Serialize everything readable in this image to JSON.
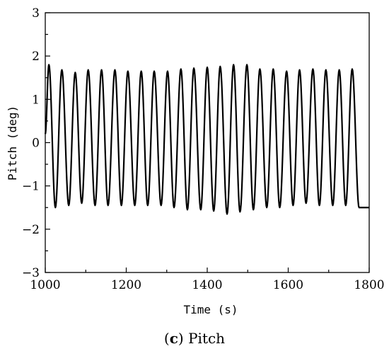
{
  "chart_data": {
    "type": "line",
    "title": "",
    "xlabel": "Time (s)",
    "ylabel": "Pitch (deg)",
    "xlim": [
      1000,
      1800
    ],
    "ylim": [
      -3,
      3
    ],
    "xticks": [
      1000,
      1200,
      1400,
      1600,
      1800
    ],
    "yticks": [
      -3,
      -2,
      -1,
      0,
      1,
      2,
      3
    ],
    "grid": false,
    "legend": "none",
    "series": [
      {
        "color": "#000000",
        "signal": "sinusoid",
        "period_s": 32.6,
        "start_time_s": 1000,
        "start_value": 0.2,
        "peaks": [
          {
            "x": 1009,
            "y": 1.8
          },
          {
            "x": 1041,
            "y": 1.68
          },
          {
            "x": 1074,
            "y": 1.62
          },
          {
            "x": 1106,
            "y": 1.68
          },
          {
            "x": 1139,
            "y": 1.68
          },
          {
            "x": 1172,
            "y": 1.68
          },
          {
            "x": 1204,
            "y": 1.65
          },
          {
            "x": 1237,
            "y": 1.65
          },
          {
            "x": 1269,
            "y": 1.65
          },
          {
            "x": 1302,
            "y": 1.65
          },
          {
            "x": 1335,
            "y": 1.7
          },
          {
            "x": 1367,
            "y": 1.72
          },
          {
            "x": 1400,
            "y": 1.74
          },
          {
            "x": 1432,
            "y": 1.76
          },
          {
            "x": 1465,
            "y": 1.8
          },
          {
            "x": 1498,
            "y": 1.8
          },
          {
            "x": 1530,
            "y": 1.7
          },
          {
            "x": 1563,
            "y": 1.7
          },
          {
            "x": 1596,
            "y": 1.65
          },
          {
            "x": 1628,
            "y": 1.68
          },
          {
            "x": 1661,
            "y": 1.7
          },
          {
            "x": 1693,
            "y": 1.68
          },
          {
            "x": 1726,
            "y": 1.68
          },
          {
            "x": 1758,
            "y": 1.7
          }
        ],
        "troughs": [
          {
            "x": 1025,
            "y": -1.5
          },
          {
            "x": 1058,
            "y": -1.45
          },
          {
            "x": 1090,
            "y": -1.4
          },
          {
            "x": 1123,
            "y": -1.45
          },
          {
            "x": 1155,
            "y": -1.45
          },
          {
            "x": 1188,
            "y": -1.45
          },
          {
            "x": 1221,
            "y": -1.45
          },
          {
            "x": 1253,
            "y": -1.45
          },
          {
            "x": 1286,
            "y": -1.45
          },
          {
            "x": 1318,
            "y": -1.5
          },
          {
            "x": 1351,
            "y": -1.55
          },
          {
            "x": 1384,
            "y": -1.55
          },
          {
            "x": 1416,
            "y": -1.58
          },
          {
            "x": 1449,
            "y": -1.65
          },
          {
            "x": 1481,
            "y": -1.6
          },
          {
            "x": 1514,
            "y": -1.55
          },
          {
            "x": 1547,
            "y": -1.5
          },
          {
            "x": 1579,
            "y": -1.5
          },
          {
            "x": 1612,
            "y": -1.45
          },
          {
            "x": 1644,
            "y": -1.4
          },
          {
            "x": 1677,
            "y": -1.45
          },
          {
            "x": 1710,
            "y": -1.45
          },
          {
            "x": 1742,
            "y": -1.45
          },
          {
            "x": 1775,
            "y": -1.5
          }
        ],
        "end_time_s": 1800,
        "end_value": -1.5
      }
    ]
  },
  "caption": {
    "letter": "c",
    "text": "Pitch"
  }
}
